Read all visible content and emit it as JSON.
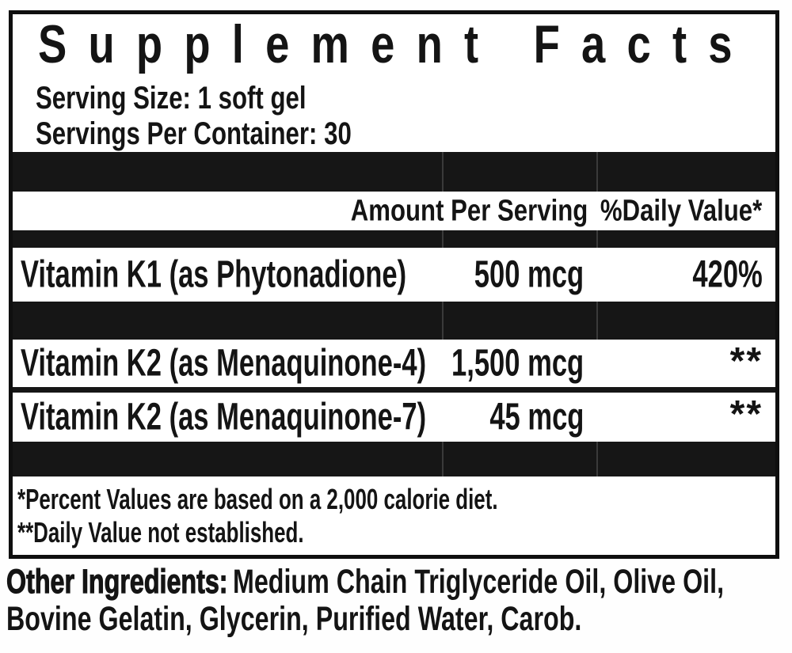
{
  "panel": {
    "title": "Supplement Facts",
    "serving_size": "Serving Size: 1 soft gel",
    "servings_per_container": "Servings Per Container: 30"
  },
  "table": {
    "columns": {
      "amount": "Amount Per Serving",
      "dv": "%Daily Value*"
    },
    "rows": [
      {
        "name": "Vitamin K1 (as Phytonadione)",
        "amount": "500 mcg",
        "dv": "420%"
      },
      {
        "name": "Vitamin K2 (as Menaquinone-4)",
        "amount": "1,500 mcg",
        "dv": "**"
      },
      {
        "name": "Vitamin K2 (as Menaquinone-7)",
        "amount": "45 mcg",
        "dv": "**"
      }
    ]
  },
  "footnotes": [
    "*Percent Values are based on a 2,000 calorie diet.",
    "**Daily Value not established."
  ],
  "other_ingredients": {
    "label": "Other Ingredients:",
    "line1_rest": "Medium Chain Triglyceride Oil, Olive Oil,",
    "line2": "Bovine Gelatin, Glycerin, Purified Water, Carob."
  },
  "colors": {
    "bar": "#161616",
    "seam": "#3a3a3a",
    "border": "#0f0f0f",
    "text": "#141414",
    "background": "#ffffff"
  }
}
